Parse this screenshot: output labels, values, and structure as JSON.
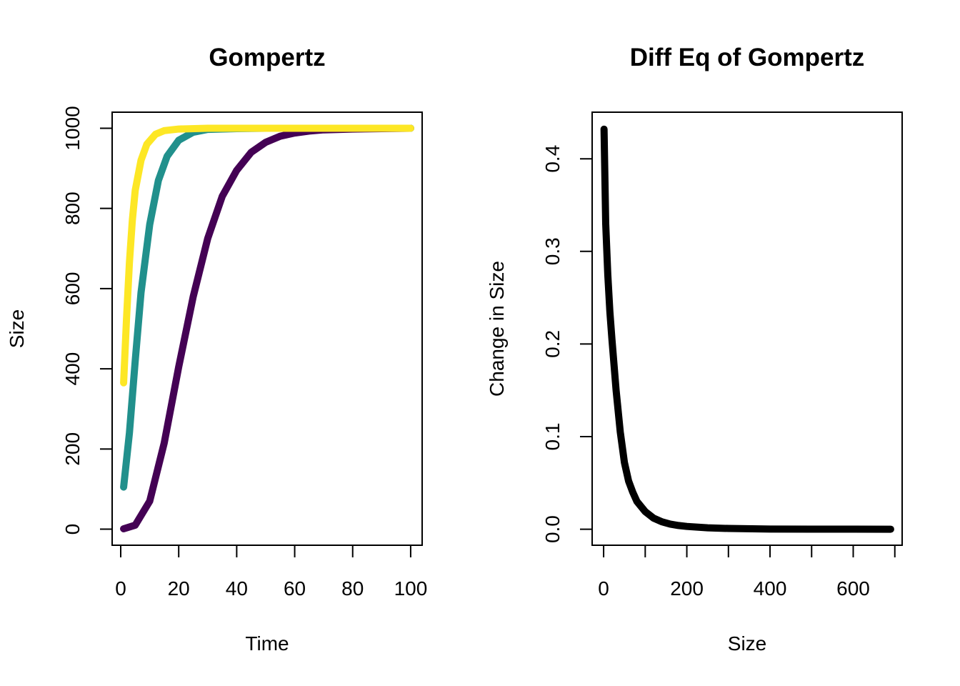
{
  "chart_data": [
    {
      "type": "line",
      "title": "Gompertz",
      "xlabel": "Time",
      "ylabel": "Size",
      "xlim": [
        -2.96,
        103.96
      ],
      "ylim": [
        -40,
        1040
      ],
      "xticks": [
        0,
        20,
        40,
        60,
        80,
        100
      ],
      "yticks": [
        0,
        200,
        400,
        600,
        800,
        1000
      ],
      "grid": false,
      "series": [
        {
          "color": "#440154",
          "x": [
            1,
            5,
            10,
            15,
            20,
            25,
            30,
            35,
            40,
            45,
            50,
            55,
            60,
            65,
            70,
            80,
            90,
            100
          ],
          "values": [
            1,
            10,
            70,
            215,
            405,
            580,
            725,
            830,
            895,
            940,
            965,
            980,
            988,
            993,
            996,
            998,
            999,
            1000
          ]
        },
        {
          "color": "#21908C",
          "x": [
            1,
            3,
            5,
            7,
            10,
            13,
            16,
            20,
            25,
            30,
            40,
            50,
            60,
            80,
            100
          ],
          "values": [
            105,
            240,
            420,
            590,
            760,
            870,
            930,
            970,
            990,
            997,
            999,
            1000,
            1000,
            1000,
            1000
          ],
          "values_note": ""
        },
        {
          "color": "#FDE725",
          "x": [
            1,
            2,
            3,
            4,
            5,
            7,
            9,
            12,
            15,
            20,
            30,
            50,
            100
          ],
          "values": [
            365,
            525,
            665,
            770,
            845,
            920,
            960,
            985,
            994,
            998,
            1000,
            1000,
            1000
          ]
        }
      ]
    },
    {
      "type": "line",
      "title": "Diff Eq of Gompertz",
      "xlabel": "Size",
      "ylabel": "Change in Size",
      "xlim": [
        -27.6,
        717.6
      ],
      "ylim": [
        -0.0173,
        0.4503
      ],
      "xticks": [
        0,
        200,
        400,
        600
      ],
      "yticks": [
        0.0,
        0.1,
        0.2,
        0.3,
        0.4
      ],
      "ytick_labels": [
        "0.0",
        "0.1",
        "0.2",
        "0.3",
        "0.4"
      ],
      "grid": false,
      "series": [
        {
          "color": "#000000",
          "x": [
            1,
            5,
            10,
            15,
            20,
            30,
            40,
            50,
            60,
            70,
            80,
            100,
            120,
            140,
            160,
            180,
            200,
            250,
            300,
            400,
            500,
            600,
            690
          ],
          "values": [
            0.432,
            0.33,
            0.275,
            0.235,
            0.205,
            0.15,
            0.105,
            0.072,
            0.052,
            0.04,
            0.03,
            0.019,
            0.012,
            0.008,
            0.0055,
            0.004,
            0.003,
            0.0015,
            0.0008,
            0.0002,
            0.0001,
            3e-05,
            1e-05
          ]
        }
      ]
    }
  ]
}
